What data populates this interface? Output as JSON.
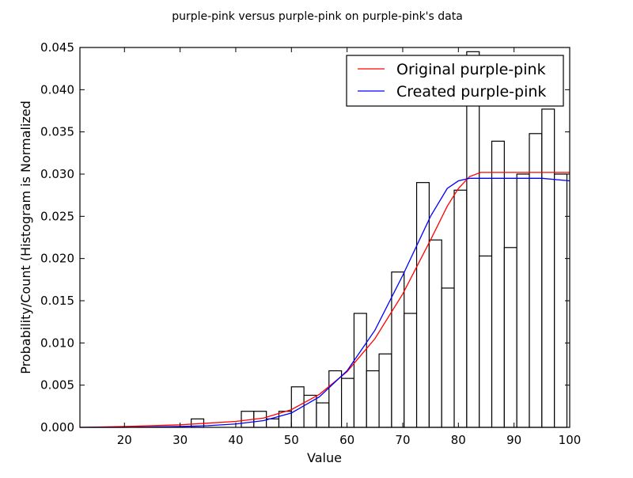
{
  "chart_data": {
    "type": "histogram_with_lines",
    "title": "purple-pink versus purple-pink on purple-pink's data",
    "xlabel": "Value",
    "ylabel": "Probability/Count (Histogram is Normalized",
    "xlim": [
      12.0,
      100.0
    ],
    "ylim": [
      0.0,
      0.045
    ],
    "xticks": [
      20,
      30,
      40,
      50,
      60,
      70,
      80,
      90,
      100
    ],
    "yticks": [
      "0.000",
      "0.005",
      "0.010",
      "0.015",
      "0.020",
      "0.025",
      "0.030",
      "0.035",
      "0.040",
      "0.045"
    ],
    "grid": false,
    "legend_position": "top-right",
    "histogram": {
      "bin_width": 2.25,
      "bars": [
        {
          "x0": 32.0,
          "height": 0.001
        },
        {
          "x0": 41.0,
          "height": 0.0019
        },
        {
          "x0": 43.25,
          "height": 0.0019
        },
        {
          "x0": 45.5,
          "height": 0.001
        },
        {
          "x0": 47.75,
          "height": 0.0019
        },
        {
          "x0": 50.0,
          "height": 0.0048
        },
        {
          "x0": 52.25,
          "height": 0.0038
        },
        {
          "x0": 54.5,
          "height": 0.0029
        },
        {
          "x0": 56.75,
          "height": 0.0067
        },
        {
          "x0": 59.0,
          "height": 0.0058
        },
        {
          "x0": 61.25,
          "height": 0.0135
        },
        {
          "x0": 63.5,
          "height": 0.0067
        },
        {
          "x0": 65.75,
          "height": 0.0087
        },
        {
          "x0": 68.0,
          "height": 0.0184
        },
        {
          "x0": 70.25,
          "height": 0.0135
        },
        {
          "x0": 72.5,
          "height": 0.029
        },
        {
          "x0": 74.75,
          "height": 0.0222
        },
        {
          "x0": 77.0,
          "height": 0.0165
        },
        {
          "x0": 79.25,
          "height": 0.0281
        },
        {
          "x0": 81.5,
          "height": 0.0445
        },
        {
          "x0": 83.75,
          "height": 0.0203
        },
        {
          "x0": 86.0,
          "height": 0.0339
        },
        {
          "x0": 88.25,
          "height": 0.0213
        },
        {
          "x0": 90.5,
          "height": 0.03
        },
        {
          "x0": 92.75,
          "height": 0.0348
        },
        {
          "x0": 95.0,
          "height": 0.0377
        },
        {
          "x0": 97.25,
          "height": 0.03
        }
      ]
    },
    "series": [
      {
        "name": "Original purple-pink",
        "color": "#ff0000",
        "points": [
          [
            12,
            0.0
          ],
          [
            20,
            0.0001
          ],
          [
            30,
            0.0003
          ],
          [
            35,
            0.0005
          ],
          [
            40,
            0.0007
          ],
          [
            45,
            0.0011
          ],
          [
            50,
            0.0021
          ],
          [
            55,
            0.0039
          ],
          [
            60,
            0.0066
          ],
          [
            65,
            0.0105
          ],
          [
            70,
            0.0158
          ],
          [
            75,
            0.0222
          ],
          [
            78,
            0.0262
          ],
          [
            80,
            0.0283
          ],
          [
            82,
            0.0297
          ],
          [
            84,
            0.0302
          ],
          [
            86,
            0.0302
          ],
          [
            90,
            0.0302
          ],
          [
            95,
            0.0302
          ],
          [
            100,
            0.0302
          ]
        ]
      },
      {
        "name": "Created purple-pink",
        "color": "#0000ff",
        "points": [
          [
            12,
            0.0
          ],
          [
            20,
            0.0
          ],
          [
            30,
            0.0001
          ],
          [
            35,
            0.0002
          ],
          [
            40,
            0.0004
          ],
          [
            45,
            0.0008
          ],
          [
            50,
            0.0017
          ],
          [
            55,
            0.0036
          ],
          [
            60,
            0.0067
          ],
          [
            65,
            0.0115
          ],
          [
            70,
            0.018
          ],
          [
            75,
            0.025
          ],
          [
            78,
            0.0283
          ],
          [
            80,
            0.0292
          ],
          [
            82,
            0.0295
          ],
          [
            84,
            0.0295
          ],
          [
            90,
            0.0295
          ],
          [
            95,
            0.0295
          ],
          [
            100,
            0.0292
          ]
        ]
      }
    ]
  }
}
